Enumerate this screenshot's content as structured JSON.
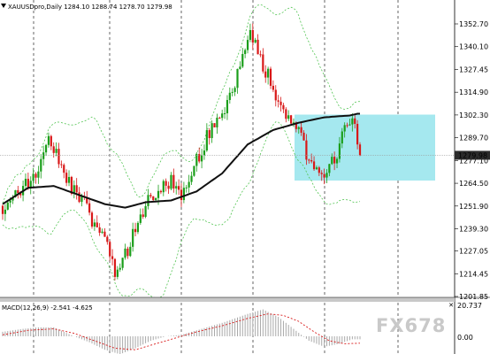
{
  "main": {
    "symbol_info": "XAUUSDpro,Daily  1284.10 1288.74 1278.70 1279.98",
    "price_axis": [
      "1352.70",
      "1340.10",
      "1327.45",
      "1314.90",
      "1302.30",
      "1289.70",
      "1277.10",
      "1264.50",
      "1251.90",
      "1239.30",
      "1227.05",
      "1214.45",
      "1201.85"
    ],
    "current_price": "1279.98",
    "colors": {
      "bull": "#1a9e1a",
      "bear": "#d81818",
      "moving_average": "#111111",
      "bands": "#52c452",
      "highlight_zone": "#a5e8ef",
      "current_price_tag": "#2b2b2b"
    }
  },
  "macd": {
    "label": "MACD(12,26,9) -2.541 -4.625",
    "axis": [
      "20.737",
      "0.00"
    ],
    "colors": {
      "histogram": "#a8a8a8",
      "signal": "#d81818"
    }
  },
  "watermark": "FX678",
  "icons": {
    "collapse": "triangle-down-icon",
    "close": "close-icon"
  },
  "chart_data": {
    "type": "candlestick",
    "instrument": "XAUUSDpro",
    "timeframe": "Daily",
    "ohlc_info": {
      "open": 1284.1,
      "high": 1288.74,
      "low": 1278.7,
      "close": 1279.98
    },
    "ylim": [
      1201.85,
      1358
    ],
    "grid": "vertical dashed",
    "waypoints": [
      [
        0,
        1252
      ],
      [
        8,
        1262
      ],
      [
        14,
        1271
      ],
      [
        18,
        1293
      ],
      [
        22,
        1276
      ],
      [
        27,
        1262
      ],
      [
        32,
        1255
      ],
      [
        36,
        1240
      ],
      [
        41,
        1230
      ],
      [
        44,
        1214
      ],
      [
        49,
        1228
      ],
      [
        53,
        1245
      ],
      [
        58,
        1256
      ],
      [
        62,
        1263
      ],
      [
        66,
        1265
      ],
      [
        70,
        1258
      ],
      [
        75,
        1275
      ],
      [
        80,
        1290
      ],
      [
        86,
        1300
      ],
      [
        91,
        1318
      ],
      [
        97,
        1350
      ],
      [
        101,
        1334
      ],
      [
        105,
        1320
      ],
      [
        110,
        1307
      ],
      [
        116,
        1292
      ],
      [
        121,
        1274
      ],
      [
        126,
        1270
      ],
      [
        131,
        1282
      ],
      [
        136,
        1300
      ],
      [
        138,
        1293
      ],
      [
        140,
        1280
      ]
    ],
    "moving_average_waypoints": [
      [
        0,
        1253
      ],
      [
        10,
        1262
      ],
      [
        20,
        1263
      ],
      [
        30,
        1258
      ],
      [
        40,
        1253
      ],
      [
        48,
        1251
      ],
      [
        56,
        1254
      ],
      [
        66,
        1255
      ],
      [
        76,
        1260
      ],
      [
        86,
        1270
      ],
      [
        96,
        1286
      ],
      [
        106,
        1294
      ],
      [
        116,
        1298
      ],
      [
        126,
        1301
      ],
      [
        136,
        1302
      ],
      [
        139,
        1303
      ]
    ],
    "highlight_zone": {
      "price_top": 1302.5,
      "price_bottom": 1266
    },
    "macd": {
      "label": "MACD(12,26,9)",
      "main": -2.541,
      "signal": -4.625,
      "hist_waypoints": [
        [
          0,
          3
        ],
        [
          8,
          5
        ],
        [
          14,
          6
        ],
        [
          20,
          6
        ],
        [
          28,
          0
        ],
        [
          34,
          -4
        ],
        [
          40,
          -9
        ],
        [
          46,
          -12
        ],
        [
          52,
          -8
        ],
        [
          58,
          -3
        ],
        [
          64,
          0
        ],
        [
          70,
          1
        ],
        [
          78,
          5
        ],
        [
          86,
          9
        ],
        [
          96,
          15
        ],
        [
          102,
          18
        ],
        [
          108,
          13
        ],
        [
          114,
          5
        ],
        [
          120,
          -3
        ],
        [
          126,
          -7
        ],
        [
          132,
          -5
        ],
        [
          137,
          -2
        ],
        [
          140,
          -2
        ]
      ],
      "signal_waypoints": [
        [
          0,
          1
        ],
        [
          10,
          4
        ],
        [
          20,
          5
        ],
        [
          28,
          2
        ],
        [
          36,
          -3
        ],
        [
          44,
          -8
        ],
        [
          52,
          -9
        ],
        [
          60,
          -5
        ],
        [
          68,
          -1
        ],
        [
          76,
          3
        ],
        [
          86,
          7
        ],
        [
          96,
          12
        ],
        [
          104,
          15
        ],
        [
          110,
          14
        ],
        [
          116,
          10
        ],
        [
          122,
          3
        ],
        [
          128,
          -3
        ],
        [
          134,
          -5
        ],
        [
          140,
          -4.6
        ]
      ]
    }
  }
}
